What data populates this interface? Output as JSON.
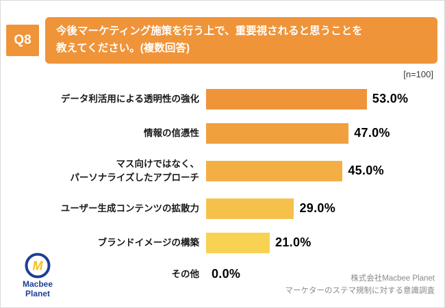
{
  "header": {
    "q_label": "Q8",
    "title": "今後マーケティング施策を行う上で、重要視されると思うことを\n教えてください。(複数回答)"
  },
  "note": "[n=100]",
  "chart_data": {
    "type": "bar",
    "orientation": "horizontal",
    "unit": "%",
    "xlim": [
      0,
      60
    ],
    "categories": [
      "データ利活用による透明性の強化",
      "情報の信憑性",
      "マス向けではなく、\nパーソナライズしたアプローチ",
      "ユーザー生成コンテンツの拡散力",
      "ブランドイメージの構築",
      "その他"
    ],
    "values": [
      53.0,
      47.0,
      45.0,
      29.0,
      21.0,
      0.0
    ],
    "value_labels": [
      "53.0%",
      "47.0%",
      "45.0%",
      "29.0%",
      "21.0%",
      "0.0%"
    ],
    "bar_colors": [
      "#EF9439",
      "#F1A03E",
      "#F4AF44",
      "#F6C14B",
      "#F8D252",
      "#F8D252"
    ],
    "legend": [],
    "grid": false
  },
  "footer": {
    "credit_line1": "株式会社Macbee Planet",
    "credit_line2": "マーケターのステマ規制に対する意識調査",
    "logo_line1": "Macbee",
    "logo_line2": "Planet"
  }
}
